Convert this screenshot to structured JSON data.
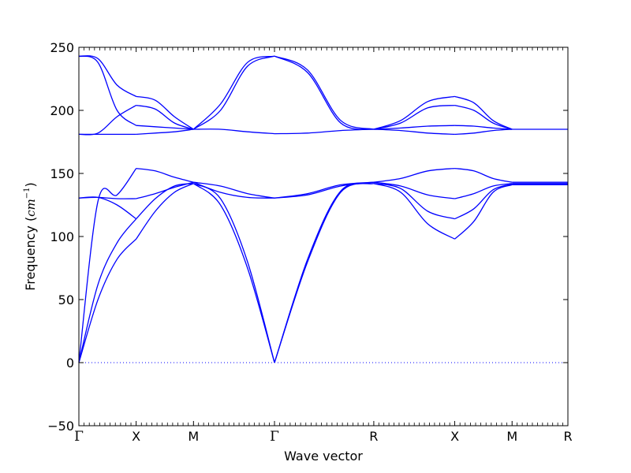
{
  "chart_data": {
    "type": "line",
    "title": "",
    "xlabel": "Wave vector",
    "ylabel": "Frequency (cm^-1)",
    "ylabel_parts": {
      "prefix": "Frequency (",
      "unit": "cm",
      "superscript": "−1",
      "suffix": ")"
    },
    "ylim": [
      -50,
      250
    ],
    "yticks": [
      -50,
      0,
      50,
      100,
      150,
      200,
      250
    ],
    "ytick_labels": [
      "−50",
      "0",
      "50",
      "100",
      "150",
      "200",
      "250"
    ],
    "xticks": [
      {
        "label": "Γ",
        "x": 0
      },
      {
        "label": "X",
        "x": 0.5
      },
      {
        "label": "M",
        "x": 1.0
      },
      {
        "label": "Γ",
        "x": 1.707
      },
      {
        "label": "R",
        "x": 2.573
      },
      {
        "label": "X",
        "x": 3.28
      },
      {
        "label": "M",
        "x": 3.78
      },
      {
        "label": "R",
        "x": 4.267
      }
    ],
    "xlim": [
      0,
      4.267
    ],
    "zero_line": {
      "y": 0,
      "style": "dotted"
    },
    "line_color": "#0000ff",
    "grid": false,
    "legend": "none",
    "segments": [
      {
        "from": "Γ",
        "to": "X",
        "bands": [
          [
            0,
            50,
            82,
            98
          ],
          [
            0,
            62,
            95,
            114
          ],
          [
            130.5,
            131,
            125,
            114
          ],
          [
            130.5,
            131,
            130,
            130
          ],
          [
            0,
            128,
            133,
            154
          ],
          [
            181,
            181,
            181,
            181
          ],
          [
            181,
            182,
            195,
            204
          ],
          [
            243,
            241,
            220,
            211
          ],
          [
            243,
            238,
            200,
            188
          ]
        ]
      },
      {
        "from": "X",
        "to": "M",
        "bands": [
          [
            98,
            120,
            135,
            142
          ],
          [
            114,
            130,
            140,
            142
          ],
          [
            130,
            134,
            139,
            143
          ],
          [
            154,
            152,
            147,
            143
          ],
          [
            181,
            182,
            183,
            185
          ],
          [
            204,
            201,
            190,
            185
          ],
          [
            211,
            208,
            195,
            185
          ],
          [
            188,
            187,
            186,
            185
          ]
        ]
      },
      {
        "from": "M",
        "to": "Γ",
        "bands": [
          [
            142,
            125,
            75,
            0
          ],
          [
            142,
            130,
            80,
            0
          ],
          [
            143,
            135,
            131,
            130.5
          ],
          [
            143,
            140,
            134,
            130.5
          ],
          [
            185,
            185,
            183,
            181.5
          ],
          [
            185,
            205,
            238,
            243
          ],
          [
            185,
            200,
            235,
            243
          ]
        ]
      },
      {
        "from": "Γ",
        "to": "R",
        "bands": [
          [
            0,
            80,
            135,
            142
          ],
          [
            0,
            82,
            136,
            142
          ],
          [
            130.5,
            133,
            140,
            143
          ],
          [
            130.5,
            134,
            141,
            143
          ],
          [
            181.5,
            182,
            184,
            185
          ],
          [
            243,
            232,
            192,
            185
          ],
          [
            243,
            230,
            190,
            185
          ]
        ]
      },
      {
        "from": "R",
        "to": "X",
        "bands": [
          [
            142,
            135,
            110,
            98
          ],
          [
            142,
            138,
            120,
            114
          ],
          [
            143,
            140,
            133,
            130
          ],
          [
            143,
            146,
            152,
            154
          ],
          [
            185,
            184,
            182,
            181
          ],
          [
            185,
            186,
            187.5,
            188
          ],
          [
            185,
            190,
            202,
            204
          ],
          [
            185,
            192,
            207,
            211
          ]
        ]
      },
      {
        "from": "X",
        "to": "M",
        "bands": [
          [
            98,
            112,
            135,
            141
          ],
          [
            114,
            122,
            137,
            141.5
          ],
          [
            130,
            134,
            140,
            142
          ],
          [
            154,
            152,
            146,
            143
          ],
          [
            181,
            182,
            184,
            185
          ],
          [
            188,
            187.5,
            186,
            185
          ],
          [
            204,
            200,
            190,
            185
          ],
          [
            211,
            206,
            192,
            185
          ]
        ]
      },
      {
        "from": "M",
        "to": "R",
        "bands": [
          [
            141,
            141,
            141
          ],
          [
            141.5,
            141.5,
            141.5
          ],
          [
            142,
            142,
            142
          ],
          [
            143,
            143,
            143
          ],
          [
            185,
            185,
            185
          ]
        ]
      }
    ]
  }
}
